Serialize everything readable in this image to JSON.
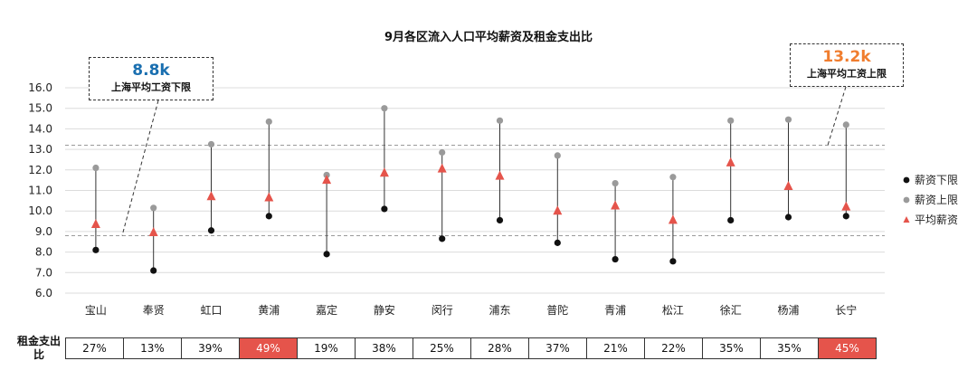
{
  "chart_data": {
    "type": "scatter",
    "title": "9月各区流入人口平均薪资及租金支出比",
    "categories": [
      "宝山",
      "奉贤",
      "虹口",
      "黄浦",
      "嘉定",
      "静安",
      "闵行",
      "浦东",
      "普陀",
      "青浦",
      "松江",
      "徐汇",
      "杨浦",
      "长宁"
    ],
    "ylim": [
      6.0,
      16.0
    ],
    "yticks": [
      "6.0",
      "7.0",
      "8.0",
      "9.0",
      "10.0",
      "11.0",
      "12.0",
      "13.0",
      "14.0",
      "15.0",
      "16.0"
    ],
    "series": [
      {
        "name": "薪资下限",
        "color": "#111111",
        "marker": "circle",
        "values": [
          8.1,
          7.1,
          9.05,
          9.75,
          7.9,
          10.1,
          8.65,
          9.55,
          8.45,
          7.65,
          7.55,
          9.55,
          9.7,
          9.75
        ]
      },
      {
        "name": "薪资上限",
        "color": "#9a9a9a",
        "marker": "circle",
        "values": [
          12.1,
          10.15,
          13.25,
          14.35,
          11.75,
          15.0,
          12.85,
          14.4,
          12.7,
          11.35,
          11.65,
          14.4,
          14.45,
          14.2
        ]
      },
      {
        "name": "平均薪资",
        "color": "#e5544b",
        "marker": "triangle",
        "values": [
          9.35,
          8.95,
          10.7,
          10.65,
          11.5,
          11.85,
          12.05,
          11.7,
          10.0,
          10.25,
          9.55,
          12.35,
          11.2,
          10.2
        ]
      }
    ],
    "reference_lines": [
      {
        "value": 8.8,
        "big": "8.8k",
        "label": "上海平均工资下限",
        "color": "#1a6fb0"
      },
      {
        "value": 13.2,
        "big": "13.2k",
        "label": "上海平均工资上限",
        "color": "#f07d2e"
      }
    ],
    "ratio_table": {
      "label": "租金支出比",
      "values": [
        "27%",
        "13%",
        "39%",
        "49%",
        "19%",
        "38%",
        "25%",
        "28%",
        "37%",
        "21%",
        "22%",
        "35%",
        "35%",
        "45%"
      ],
      "highlight": [
        "黄浦",
        "长宁"
      ],
      "highlight_color": "#e5544b"
    },
    "grid": true,
    "legend": "right"
  }
}
